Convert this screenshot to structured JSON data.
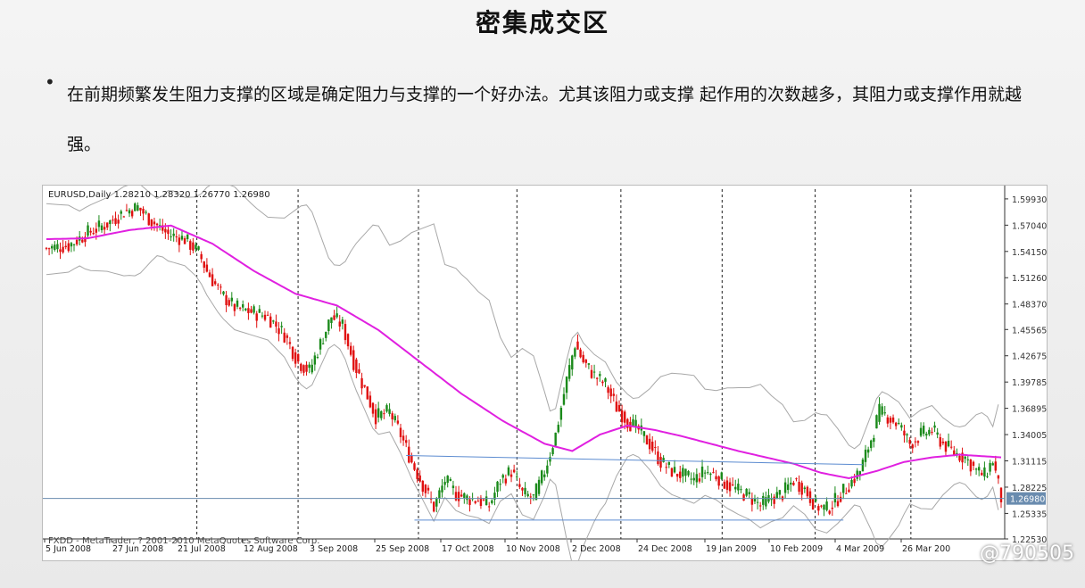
{
  "slide": {
    "title": "密集成交区",
    "bullet": "在前期频繁发生阻力支撑的区域是确定阻力与支撑的一个好办法。尤其该阻力或支撑 起作用的次数越多，其阻力或支撑作用就越强。"
  },
  "watermark": "@790505",
  "colors": {
    "bull": "#1a8a1a",
    "bear": "#e01010",
    "ma": "#e020e0",
    "bands": "#a8a8a8",
    "trend_lines": "#5b8bd0",
    "price_line": "#6a8caf"
  },
  "chart_data": {
    "type": "candlestick",
    "title": "EURUSD,Daily  1.28210 1.28320 1.26770 1.26980",
    "footer": "FXDD - MetaTrader, ? 2001-2010 MetaQuotes Software Corp.",
    "ylim": [
      1.2253,
      1.61
    ],
    "y_ticks": [
      "1.59930",
      "1.57040",
      "1.54150",
      "1.51260",
      "1.48370",
      "1.45565",
      "1.42675",
      "1.39785",
      "1.36895",
      "1.34005",
      "1.31115",
      "1.28225",
      "1.25335",
      "1.22530"
    ],
    "current_price": "1.26980",
    "x_labels": [
      "5 Jun 2008",
      "27 Jun 2008",
      "21 Jul 2008",
      "12 Aug 2008",
      "3 Sep 2008",
      "25 Sep 2008",
      "17 Oct 2008",
      "10 Nov 2008",
      "2 Dec 2008",
      "24 Dec 2008",
      "19 Jan 2009",
      "10 Feb 2009",
      "4 Mar 2009",
      "26 Mar 200"
    ],
    "bars": 210,
    "close_path": [
      [
        0,
        1.545
      ],
      [
        8,
        1.548
      ],
      [
        15,
        1.562
      ],
      [
        22,
        1.572
      ],
      [
        28,
        1.585
      ],
      [
        33,
        1.59
      ],
      [
        38,
        1.575
      ],
      [
        44,
        1.56
      ],
      [
        50,
        1.555
      ],
      [
        55,
        1.54
      ],
      [
        58,
        1.52
      ],
      [
        63,
        1.495
      ],
      [
        68,
        1.48
      ],
      [
        74,
        1.475
      ],
      [
        80,
        1.47
      ],
      [
        86,
        1.45
      ],
      [
        91,
        1.42
      ],
      [
        95,
        1.41
      ],
      [
        99,
        1.44
      ],
      [
        103,
        1.47
      ],
      [
        107,
        1.46
      ],
      [
        111,
        1.42
      ],
      [
        115,
        1.39
      ],
      [
        119,
        1.36
      ],
      [
        124,
        1.365
      ],
      [
        128,
        1.34
      ],
      [
        132,
        1.31
      ],
      [
        136,
        1.285
      ],
      [
        140,
        1.26
      ],
      [
        144,
        1.29
      ],
      [
        148,
        1.275
      ],
      [
        152,
        1.27
      ],
      [
        156,
        1.268
      ],
      [
        160,
        1.262
      ],
      [
        164,
        1.29
      ],
      [
        168,
        1.3
      ],
      [
        172,
        1.275
      ],
      [
        176,
        1.27
      ],
      [
        180,
        1.3
      ],
      [
        184,
        1.34
      ],
      [
        188,
        1.4
      ],
      [
        191,
        1.44
      ],
      [
        194,
        1.42
      ],
      [
        198,
        1.405
      ],
      [
        202,
        1.395
      ],
      [
        206,
        1.37
      ],
      [
        210,
        1.355
      ],
      [
        214,
        1.345
      ],
      [
        218,
        1.33
      ],
      [
        222,
        1.31
      ],
      [
        226,
        1.3
      ],
      [
        230,
        1.295
      ],
      [
        234,
        1.29
      ],
      [
        238,
        1.3
      ],
      [
        242,
        1.295
      ],
      [
        246,
        1.285
      ],
      [
        250,
        1.278
      ],
      [
        254,
        1.272
      ],
      [
        258,
        1.262
      ],
      [
        262,
        1.27
      ],
      [
        266,
        1.275
      ],
      [
        270,
        1.29
      ],
      [
        274,
        1.28
      ],
      [
        278,
        1.262
      ],
      [
        282,
        1.258
      ],
      [
        286,
        1.27
      ],
      [
        290,
        1.285
      ],
      [
        294,
        1.3
      ],
      [
        298,
        1.335
      ],
      [
        301,
        1.365
      ],
      [
        304,
        1.36
      ],
      [
        308,
        1.35
      ],
      [
        312,
        1.33
      ],
      [
        316,
        1.34
      ],
      [
        320,
        1.345
      ],
      [
        324,
        1.33
      ],
      [
        328,
        1.32
      ],
      [
        332,
        1.315
      ],
      [
        336,
        1.3
      ],
      [
        339,
        1.295
      ],
      [
        342,
        1.312
      ],
      [
        345,
        1.27
      ]
    ],
    "moving_average": [
      [
        0,
        1.555
      ],
      [
        15,
        1.556
      ],
      [
        30,
        1.565
      ],
      [
        45,
        1.57
      ],
      [
        60,
        1.55
      ],
      [
        75,
        1.52
      ],
      [
        90,
        1.495
      ],
      [
        105,
        1.482
      ],
      [
        120,
        1.455
      ],
      [
        135,
        1.42
      ],
      [
        150,
        1.385
      ],
      [
        165,
        1.355
      ],
      [
        180,
        1.33
      ],
      [
        190,
        1.322
      ],
      [
        200,
        1.34
      ],
      [
        210,
        1.35
      ],
      [
        220,
        1.345
      ],
      [
        230,
        1.338
      ],
      [
        240,
        1.33
      ],
      [
        250,
        1.322
      ],
      [
        260,
        1.315
      ],
      [
        270,
        1.308
      ],
      [
        280,
        1.298
      ],
      [
        290,
        1.292
      ],
      [
        300,
        1.3
      ],
      [
        310,
        1.31
      ],
      [
        320,
        1.315
      ],
      [
        330,
        1.318
      ],
      [
        345,
        1.315
      ]
    ],
    "annotations": {
      "resistance_line": {
        "from": [
          130,
          1.317
        ],
        "to": [
          295,
          1.307
        ]
      },
      "support_line": {
        "from": [
          133,
          1.246
        ],
        "to": [
          288,
          1.246
        ]
      }
    }
  }
}
